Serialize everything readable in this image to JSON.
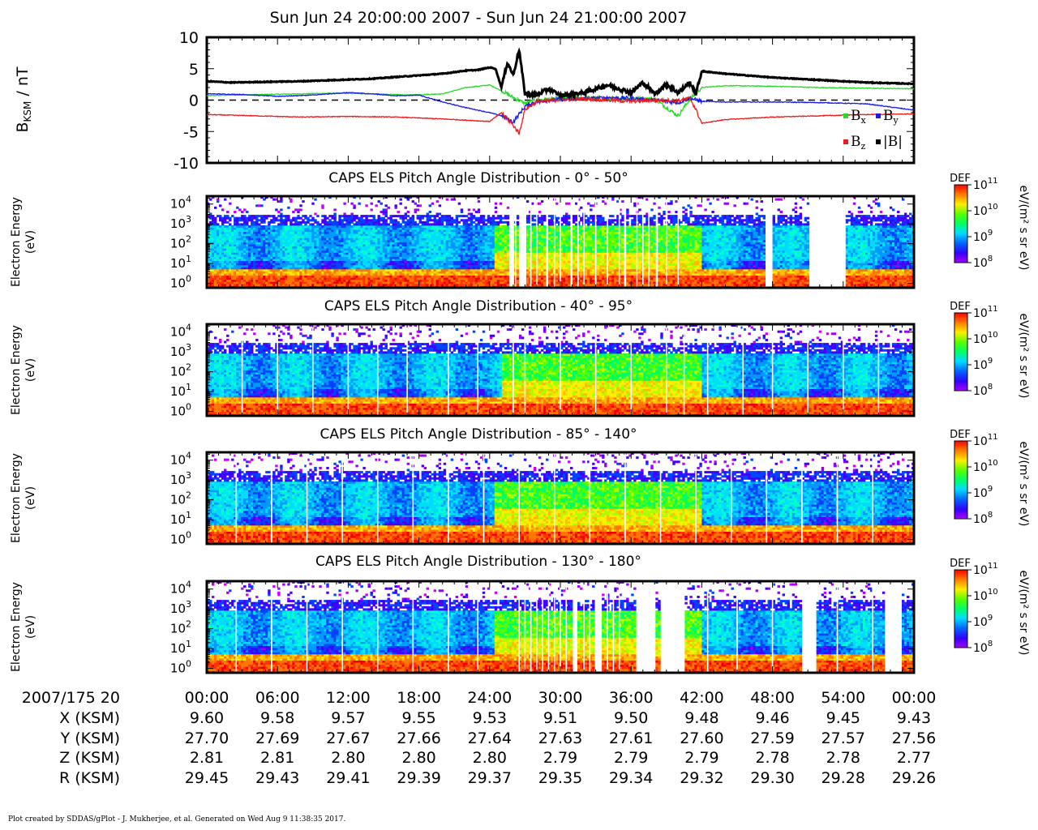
{
  "title": "Sun Jun 24 20:00:00 2007 - Sun Jun 24 21:00:00 2007",
  "credit": "Plot created by SDDAS/gPlot - J. Mukherjee, et al.  Generated on Wed Aug 9 11:38:35 2017.",
  "colors": {
    "bx": "#22dd22",
    "by": "#1a1aee",
    "bz": "#ee1a1a",
    "btot": "#000000"
  },
  "chart_data": [
    {
      "type": "line",
      "ylabel": "B",
      "ylabel_sub": "KSM",
      "ylabel_unit": " / nT",
      "ylim": [
        -10,
        10
      ],
      "yticks": [
        "10",
        "5",
        "0",
        "-5",
        "-10"
      ],
      "xlim": [
        0,
        60
      ],
      "zero_line": true,
      "legend_placement": "bottom-right",
      "series": [
        {
          "name": "Bx",
          "base": "B",
          "sub": "x",
          "color": "#22dd22",
          "x": [
            0,
            2,
            5,
            8,
            11,
            14,
            17,
            20,
            22,
            24,
            25,
            26,
            27,
            28,
            30,
            32,
            34,
            36,
            38,
            39,
            40,
            41,
            42,
            44,
            48,
            52,
            56,
            60
          ],
          "values": [
            0.7,
            0.8,
            0.9,
            1.0,
            1.1,
            1.0,
            0.8,
            1.0,
            2.0,
            2.4,
            1.5,
            0.4,
            -0.5,
            0.0,
            0.3,
            0.4,
            0.2,
            0.3,
            0.2,
            -1.2,
            -2.5,
            0.2,
            2.0,
            2.3,
            2.2,
            2.0,
            1.9,
            1.8
          ]
        },
        {
          "name": "By",
          "base": "B",
          "sub": "y",
          "color": "#1a1aee",
          "x": [
            0,
            3,
            6,
            9,
            12,
            14,
            16,
            18,
            20,
            22,
            24,
            25,
            26,
            27,
            28,
            30,
            32,
            34,
            36,
            38,
            40,
            41,
            42,
            44,
            48,
            52,
            56,
            60
          ],
          "values": [
            1.0,
            0.9,
            0.6,
            0.8,
            1.2,
            1.0,
            0.7,
            0.8,
            -0.3,
            -1.2,
            -2.0,
            -2.5,
            -3.5,
            -1.0,
            -0.2,
            0.1,
            0.2,
            0.4,
            0.3,
            0.0,
            -0.4,
            0.3,
            -0.2,
            -0.3,
            -0.3,
            -0.4,
            -0.6,
            -1.6
          ]
        },
        {
          "name": "Bz",
          "base": "B",
          "sub": "z",
          "color": "#ee1a1a",
          "x": [
            0,
            4,
            8,
            12,
            16,
            20,
            22,
            24,
            25,
            26,
            26.5,
            27,
            28,
            30,
            32,
            34,
            36,
            38,
            40,
            41,
            41.5,
            42,
            44,
            48,
            52,
            56,
            60
          ],
          "values": [
            -2.3,
            -2.5,
            -2.7,
            -2.6,
            -2.7,
            -3.0,
            -3.2,
            -3.4,
            -2.0,
            -4.0,
            -5.3,
            -1.5,
            -0.3,
            0.1,
            0.2,
            0.0,
            -0.2,
            0.0,
            -0.1,
            0.3,
            -1.5,
            -3.7,
            -3.1,
            -2.7,
            -2.5,
            -2.3,
            -2.2
          ]
        },
        {
          "name": "|B|",
          "base": "|B|",
          "sub": "",
          "color": "#000000",
          "x": [
            0,
            2,
            5,
            8,
            11,
            14,
            17,
            20,
            22,
            23,
            24,
            24.5,
            25,
            25.5,
            26,
            26.5,
            27,
            28,
            29,
            30,
            32,
            34,
            36,
            37,
            38,
            39,
            40,
            41,
            41.5,
            42,
            44,
            48,
            52,
            56,
            60
          ],
          "values": [
            3.0,
            2.8,
            2.9,
            3.0,
            3.2,
            3.4,
            3.8,
            4.2,
            4.7,
            4.8,
            5.2,
            5.0,
            2.0,
            6.0,
            4.0,
            8.0,
            1.0,
            0.8,
            1.8,
            0.7,
            1.2,
            2.4,
            1.2,
            2.8,
            1.0,
            2.5,
            1.2,
            2.8,
            1.0,
            4.6,
            4.2,
            3.6,
            3.2,
            2.8,
            2.6
          ]
        }
      ]
    },
    {
      "type": "heatmap",
      "title": "CAPS ELS Pitch Angle Distribution - 0° - 50°",
      "ylabel": "Electron Energy",
      "ylabel_unit": "(eV)",
      "y_scale": "log",
      "ylim": [
        0.6,
        25000
      ],
      "yticks": [
        1,
        10,
        100,
        1000,
        10000
      ],
      "xlim": [
        0,
        60
      ],
      "colorbar": {
        "label": "DEF",
        "unit": "eV/(m² s sr eV)",
        "scale": "log",
        "range": [
          100000000.0,
          100000000000.0
        ],
        "ticks": [
          8,
          9,
          10,
          11
        ]
      },
      "gaps_min": [
        [
          51.2,
          54.2
        ],
        [
          47.4,
          48.1
        ],
        [
          25.6,
          26.0
        ],
        [
          26.5,
          27.0
        ],
        [
          28.7,
          29.0
        ],
        [
          30.8,
          31.1
        ],
        [
          35.3,
          35.6
        ],
        [
          38.0,
          38.3
        ]
      ],
      "white_lines_min": [
        26.2,
        27.5,
        28.0,
        29.5,
        30.0,
        31.5,
        32.0,
        33.0,
        34.0,
        35.0,
        36.5,
        37.0,
        37.5,
        39.0,
        40.0
      ],
      "hot_intervals_min": [
        [
          24.5,
          42.0
        ]
      ]
    },
    {
      "type": "heatmap",
      "title": "CAPS ELS Pitch Angle Distribution - 40° - 95°",
      "ylabel": "Electron Energy",
      "ylabel_unit": "(eV)",
      "y_scale": "log",
      "ylim": [
        0.6,
        25000
      ],
      "yticks": [
        1,
        10,
        100,
        1000,
        10000
      ],
      "xlim": [
        0,
        60
      ],
      "colorbar": {
        "label": "DEF",
        "unit": "eV/(m² s sr eV)",
        "scale": "log",
        "range": [
          100000000.0,
          100000000000.0
        ],
        "ticks": [
          8,
          9,
          10,
          11
        ]
      },
      "gaps_min": [],
      "white_lines_min": [
        3.0,
        6.0,
        9.0,
        12.0,
        14.5,
        17.0,
        20.5,
        23.0,
        26.0,
        27.0,
        30.0,
        33.0,
        36.0,
        39.0,
        40.5,
        42.5,
        45.5,
        48.0,
        51.0,
        54.0,
        57.0
      ],
      "hot_intervals_min": [
        [
          25.0,
          42.0
        ]
      ]
    },
    {
      "type": "heatmap",
      "title": "CAPS ELS Pitch Angle Distribution - 85° - 140°",
      "ylabel": "Electron Energy",
      "ylabel_unit": "(eV)",
      "y_scale": "log",
      "ylim": [
        0.6,
        25000
      ],
      "yticks": [
        1,
        10,
        100,
        1000,
        10000
      ],
      "xlim": [
        0,
        60
      ],
      "colorbar": {
        "label": "DEF",
        "unit": "eV/(m² s sr eV)",
        "scale": "log",
        "range": [
          100000000.0,
          100000000000.0
        ],
        "ticks": [
          8,
          9,
          10,
          11
        ]
      },
      "gaps_min": [],
      "white_lines_min": [
        2.5,
        5.5,
        8.5,
        11.5,
        14.5,
        17.5,
        20.5,
        23.5,
        26.5,
        29.5,
        32.5,
        35.5,
        38.5,
        41.5,
        44.5,
        47.5,
        50.5,
        53.5,
        56.5
      ],
      "hot_intervals_min": [
        [
          24.5,
          42.0
        ]
      ]
    },
    {
      "type": "heatmap",
      "title": "CAPS ELS Pitch Angle Distribution - 130° - 180°",
      "ylabel": "Electron Energy",
      "ylabel_unit": "(eV)",
      "y_scale": "log",
      "ylim": [
        0.6,
        25000
      ],
      "yticks": [
        1,
        10,
        100,
        1000,
        10000
      ],
      "xlim": [
        0,
        60
      ],
      "colorbar": {
        "label": "DEF",
        "unit": "eV/(m² s sr eV)",
        "scale": "log",
        "range": [
          100000000.0,
          100000000000.0
        ],
        "ticks": [
          8,
          9,
          10,
          11
        ]
      },
      "gaps_min": [
        [
          36.5,
          38.0
        ],
        [
          38.5,
          40.5
        ],
        [
          50.5,
          51.8
        ],
        [
          57.5,
          59.0
        ],
        [
          31.0,
          31.5
        ],
        [
          33.0,
          33.5
        ]
      ],
      "white_lines_min": [
        2.5,
        5.5,
        8.5,
        11.5,
        14.5,
        17.5,
        20.5,
        23.0,
        26.5,
        27.0,
        27.5,
        28.0,
        28.5,
        29.0,
        29.5,
        30.0,
        30.5,
        32.0,
        32.5,
        34.0,
        34.5,
        35.0,
        42.5,
        45.0,
        48.0,
        53.5,
        56.5
      ],
      "hot_intervals_min": [
        [
          24.5,
          42.0
        ]
      ]
    }
  ],
  "ephemeris": {
    "date_label": "2007/175 20",
    "times": [
      "00:00",
      "06:00",
      "12:00",
      "18:00",
      "24:00",
      "30:00",
      "36:00",
      "42:00",
      "48:00",
      "54:00",
      "00:00"
    ],
    "rows": [
      {
        "label": "X (KSM)",
        "values": [
          "9.60",
          "9.58",
          "9.57",
          "9.55",
          "9.53",
          "9.51",
          "9.50",
          "9.48",
          "9.46",
          "9.45",
          "9.43"
        ]
      },
      {
        "label": "Y (KSM)",
        "values": [
          "27.70",
          "27.69",
          "27.67",
          "27.66",
          "27.64",
          "27.63",
          "27.61",
          "27.60",
          "27.59",
          "27.57",
          "27.56"
        ]
      },
      {
        "label": "Z (KSM)",
        "values": [
          "2.81",
          "2.81",
          "2.80",
          "2.80",
          "2.80",
          "2.79",
          "2.79",
          "2.79",
          "2.78",
          "2.78",
          "2.77"
        ]
      },
      {
        "label": "R (KSM)",
        "values": [
          "29.45",
          "29.43",
          "29.41",
          "29.39",
          "29.37",
          "29.35",
          "29.34",
          "29.32",
          "29.30",
          "29.28",
          "29.26"
        ]
      }
    ]
  }
}
